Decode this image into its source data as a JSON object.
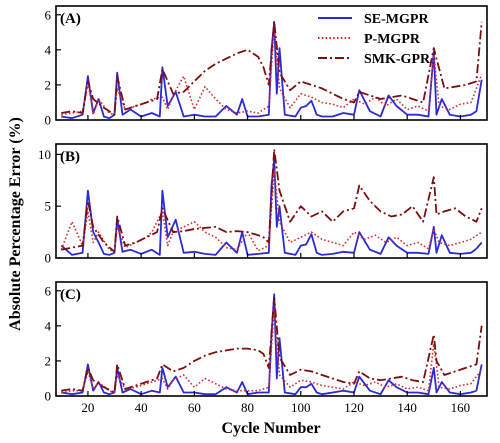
{
  "chart_data": {
    "type": "line",
    "xlabel": "Cycle Number",
    "ylabel": "Absolute Percentage Error (%)",
    "xlim": [
      8,
      170
    ],
    "xticks": [
      20,
      40,
      60,
      80,
      100,
      120,
      140,
      160
    ],
    "legend": {
      "placement": "top-right",
      "entries": [
        {
          "name": "SE-MGPR",
          "color": "#2a2ad8",
          "style": "solid"
        },
        {
          "name": "P-MGPR",
          "color": "#d23030",
          "style": "dotted"
        },
        {
          "name": "SMK-GPR",
          "color": "#7a0f0f",
          "style": "dashdot"
        }
      ]
    },
    "panels": [
      {
        "label": "(A)",
        "ylim": [
          0,
          6.5
        ],
        "yticks": [
          0,
          2,
          4,
          6
        ],
        "series": [
          {
            "name": "SE-MGPR",
            "x": [
              10,
              14,
              18,
              20,
              22,
              24,
              26,
              28,
              30,
              31,
              33,
              36,
              40,
              44,
              47,
              48,
              50,
              53,
              56,
              60,
              64,
              68,
              72,
              76,
              78,
              80,
              84,
              88,
              89,
              90,
              91,
              92,
              94,
              98,
              100,
              102,
              104,
              106,
              108,
              112,
              116,
              120,
              122,
              126,
              130,
              133,
              136,
              140,
              144,
              148,
              150,
              151,
              153,
              156,
              160,
              164,
              166,
              168
            ],
            "y": [
              0.2,
              0.1,
              0.3,
              2.5,
              0.4,
              1.2,
              0.2,
              0.1,
              0.3,
              2.7,
              0.3,
              0.6,
              0.2,
              0.4,
              0.2,
              3.0,
              0.8,
              1.6,
              0.2,
              0.3,
              0.2,
              0.2,
              0.8,
              0.3,
              1.2,
              0.2,
              0.2,
              0.3,
              4.0,
              5.6,
              1.5,
              4.1,
              0.3,
              0.2,
              0.7,
              0.8,
              1.1,
              0.3,
              0.2,
              0.2,
              0.4,
              0.3,
              1.7,
              0.5,
              0.2,
              1.4,
              0.8,
              0.3,
              0.3,
              0.2,
              3.9,
              0.3,
              1.2,
              0.3,
              0.2,
              0.3,
              0.5,
              2.3
            ]
          },
          {
            "name": "P-MGPR",
            "x": [
              10,
              14,
              18,
              20,
              22,
              24,
              28,
              30,
              31,
              34,
              38,
              42,
              44,
              48,
              50,
              52,
              56,
              60,
              64,
              68,
              72,
              76,
              80,
              84,
              88,
              90,
              92,
              96,
              100,
              104,
              108,
              112,
              116,
              120,
              124,
              128,
              132,
              136,
              140,
              144,
              148,
              150,
              152,
              156,
              160,
              164,
              168
            ],
            "y": [
              0.3,
              0.4,
              0.5,
              2.2,
              0.3,
              1.2,
              0.4,
              0.3,
              1.8,
              0.6,
              0.8,
              1.0,
              1.2,
              1.3,
              0.6,
              1.4,
              2.5,
              0.6,
              1.9,
              1.2,
              0.6,
              0.4,
              0.5,
              0.4,
              0.8,
              5.3,
              1.8,
              0.7,
              1.5,
              1.3,
              1.0,
              0.9,
              0.7,
              1.2,
              0.9,
              1.3,
              0.8,
              1.2,
              0.6,
              0.8,
              0.5,
              3.7,
              0.8,
              0.6,
              0.9,
              1.0,
              2.6
            ]
          },
          {
            "name": "SMK-GPR",
            "x": [
              10,
              14,
              18,
              20,
              22,
              26,
              30,
              31,
              34,
              38,
              42,
              46,
              48,
              52,
              56,
              60,
              64,
              68,
              72,
              76,
              80,
              84,
              86,
              88,
              90,
              92,
              96,
              100,
              104,
              108,
              112,
              116,
              120,
              122,
              126,
              130,
              134,
              138,
              142,
              146,
              150,
              151,
              154,
              158,
              162,
              166,
              168
            ],
            "y": [
              0.4,
              0.5,
              0.4,
              2.2,
              1.2,
              0.7,
              0.3,
              2.5,
              0.6,
              0.8,
              1.0,
              1.2,
              2.9,
              1.5,
              1.6,
              2.2,
              2.8,
              3.2,
              3.5,
              3.8,
              4.0,
              3.6,
              3.0,
              2.0,
              5.6,
              2.7,
              1.7,
              2.2,
              2.0,
              1.8,
              1.5,
              1.2,
              1.0,
              1.6,
              1.4,
              1.2,
              1.3,
              1.4,
              1.2,
              1.0,
              4.1,
              3.5,
              1.8,
              1.9,
              2.0,
              2.2,
              5.6
            ]
          }
        ]
      },
      {
        "label": "(B)",
        "ylim": [
          0,
          11
        ],
        "yticks": [
          0,
          5,
          10
        ],
        "series": [
          {
            "name": "SE-MGPR",
            "x": [
              10,
              14,
              18,
              20,
              22,
              24,
              26,
              28,
              30,
              31,
              33,
              36,
              40,
              44,
              47,
              48,
              50,
              53,
              56,
              60,
              64,
              68,
              72,
              76,
              78,
              80,
              84,
              88,
              89,
              90,
              91,
              92,
              94,
              98,
              100,
              102,
              104,
              106,
              108,
              112,
              116,
              120,
              122,
              126,
              130,
              133,
              136,
              140,
              144,
              148,
              150,
              151,
              153,
              156,
              160,
              164,
              166,
              168
            ],
            "y": [
              1.2,
              0.3,
              0.5,
              6.5,
              2.5,
              1.5,
              0.4,
              0.3,
              0.5,
              3.8,
              0.6,
              0.8,
              0.4,
              0.8,
              0.3,
              6.5,
              2.0,
              3.7,
              0.5,
              0.6,
              0.4,
              0.3,
              1.5,
              0.5,
              2.5,
              0.3,
              0.4,
              0.5,
              7.0,
              9.5,
              3.0,
              5.0,
              0.5,
              0.3,
              1.2,
              1.3,
              2.3,
              0.5,
              0.3,
              0.4,
              0.6,
              0.5,
              2.5,
              0.8,
              0.4,
              2.0,
              1.2,
              0.5,
              0.5,
              0.4,
              3.0,
              0.5,
              2.2,
              0.5,
              0.4,
              0.5,
              0.9,
              1.5
            ]
          },
          {
            "name": "P-MGPR",
            "x": [
              10,
              14,
              18,
              20,
              22,
              24,
              28,
              30,
              31,
              34,
              38,
              42,
              44,
              48,
              50,
              52,
              56,
              60,
              64,
              68,
              72,
              76,
              80,
              84,
              88,
              90,
              92,
              96,
              100,
              104,
              108,
              112,
              116,
              120,
              124,
              128,
              132,
              136,
              140,
              144,
              148,
              150,
              152,
              156,
              160,
              164,
              168
            ],
            "y": [
              0.8,
              3.5,
              1.2,
              4.5,
              1.5,
              2.5,
              0.8,
              0.6,
              3.0,
              1.0,
              1.5,
              2.0,
              2.5,
              4.5,
              1.2,
              2.5,
              3.0,
              3.5,
              2.5,
              2.0,
              1.0,
              0.8,
              2.5,
              0.7,
              1.2,
              8.5,
              3.5,
              1.5,
              2.0,
              2.5,
              1.8,
              1.5,
              1.2,
              2.5,
              1.8,
              2.2,
              1.5,
              2.0,
              1.2,
              1.5,
              0.9,
              2.8,
              1.5,
              1.2,
              1.5,
              1.8,
              2.5
            ]
          },
          {
            "name": "SMK-GPR",
            "x": [
              10,
              14,
              18,
              20,
              22,
              26,
              30,
              31,
              34,
              38,
              42,
              46,
              48,
              52,
              56,
              60,
              64,
              68,
              72,
              76,
              80,
              84,
              86,
              88,
              90,
              92,
              96,
              100,
              104,
              108,
              112,
              116,
              120,
              122,
              126,
              130,
              134,
              138,
              142,
              146,
              150,
              151,
              154,
              158,
              162,
              166,
              168
            ],
            "y": [
              0.8,
              1.0,
              1.2,
              5.5,
              3.0,
              1.5,
              0.6,
              4.0,
              1.2,
              1.5,
              2.0,
              2.5,
              4.8,
              2.5,
              2.6,
              2.8,
              2.9,
              3.0,
              2.5,
              2.6,
              2.5,
              2.2,
              2.0,
              1.5,
              10.5,
              6.5,
              3.5,
              5.0,
              4.0,
              4.5,
              3.5,
              4.5,
              4.8,
              7.0,
              5.5,
              4.5,
              4.0,
              4.2,
              5.0,
              3.5,
              7.8,
              4.2,
              4.5,
              4.8,
              4.0,
              3.5,
              4.8
            ]
          }
        ]
      },
      {
        "label": "(C)",
        "ylim": [
          0,
          6.5
        ],
        "yticks": [
          0,
          2,
          4,
          6
        ],
        "series": [
          {
            "name": "SE-MGPR",
            "x": [
              10,
              14,
              18,
              20,
              22,
              24,
              26,
              28,
              30,
              31,
              33,
              36,
              40,
              44,
              47,
              48,
              50,
              53,
              56,
              60,
              64,
              68,
              72,
              76,
              78,
              80,
              84,
              88,
              89,
              90,
              91,
              92,
              94,
              98,
              100,
              102,
              104,
              106,
              108,
              112,
              116,
              120,
              122,
              126,
              130,
              133,
              136,
              140,
              144,
              148,
              150,
              151,
              153,
              156,
              160,
              164,
              166,
              168
            ],
            "y": [
              0.2,
              0.1,
              0.2,
              1.8,
              0.3,
              0.8,
              0.2,
              0.1,
              0.2,
              1.6,
              0.2,
              0.4,
              0.1,
              0.3,
              0.2,
              1.6,
              0.5,
              1.1,
              0.2,
              0.2,
              0.1,
              0.1,
              0.5,
              0.2,
              0.8,
              0.1,
              0.2,
              0.2,
              3.5,
              5.8,
              1.0,
              3.3,
              0.2,
              0.1,
              0.5,
              0.5,
              0.7,
              0.2,
              0.1,
              0.2,
              0.3,
              0.2,
              1.1,
              0.3,
              0.1,
              0.9,
              0.5,
              0.2,
              0.2,
              0.1,
              1.6,
              0.2,
              0.8,
              0.2,
              0.1,
              0.2,
              0.3,
              1.8
            ]
          },
          {
            "name": "P-MGPR",
            "x": [
              10,
              14,
              18,
              20,
              22,
              24,
              28,
              30,
              31,
              34,
              38,
              42,
              44,
              48,
              50,
              52,
              56,
              60,
              64,
              68,
              72,
              76,
              80,
              84,
              88,
              90,
              92,
              96,
              100,
              104,
              108,
              112,
              116,
              120,
              124,
              128,
              132,
              136,
              140,
              144,
              148,
              150,
              152,
              156,
              160,
              164,
              168
            ],
            "y": [
              0.2,
              0.3,
              0.3,
              1.4,
              0.4,
              0.8,
              0.3,
              0.2,
              1.2,
              0.4,
              0.5,
              0.7,
              0.8,
              1.0,
              0.4,
              0.9,
              1.2,
              0.5,
              1.0,
              0.7,
              0.4,
              0.3,
              0.3,
              0.3,
              0.5,
              5.0,
              1.2,
              0.5,
              0.9,
              0.8,
              0.6,
              0.5,
              0.4,
              0.8,
              0.6,
              0.8,
              0.5,
              0.7,
              0.4,
              0.5,
              0.3,
              3.0,
              0.5,
              0.4,
              0.6,
              0.7,
              1.5
            ]
          },
          {
            "name": "SMK-GPR",
            "x": [
              10,
              14,
              18,
              20,
              22,
              26,
              30,
              31,
              34,
              38,
              42,
              46,
              48,
              52,
              56,
              60,
              64,
              68,
              72,
              76,
              80,
              84,
              86,
              88,
              90,
              92,
              96,
              100,
              104,
              108,
              112,
              116,
              120,
              122,
              126,
              130,
              134,
              138,
              142,
              146,
              150,
              151,
              154,
              158,
              162,
              166,
              168
            ],
            "y": [
              0.3,
              0.4,
              0.3,
              1.6,
              0.9,
              0.5,
              0.2,
              1.8,
              0.4,
              0.6,
              0.8,
              1.0,
              1.8,
              1.4,
              1.6,
              2.0,
              2.3,
              2.5,
              2.6,
              2.7,
              2.7,
              2.6,
              2.4,
              1.6,
              5.6,
              2.2,
              1.2,
              1.5,
              1.4,
              1.2,
              1.0,
              0.8,
              0.7,
              1.4,
              1.0,
              0.9,
              1.0,
              1.1,
              0.9,
              0.8,
              3.5,
              2.0,
              1.2,
              1.4,
              1.6,
              1.8,
              4.0
            ]
          }
        ]
      }
    ]
  }
}
